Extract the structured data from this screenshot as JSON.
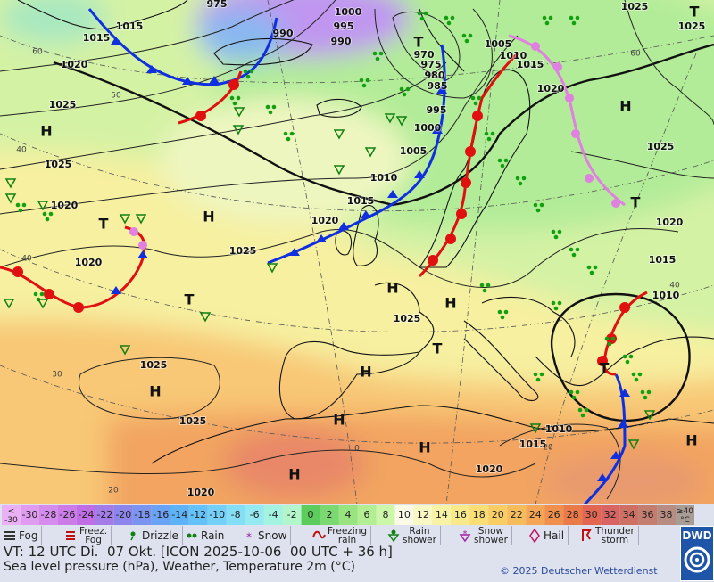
{
  "map": {
    "isobar_labels": [
      "975",
      "1000",
      "995",
      "990",
      "990",
      "1015",
      "1015",
      "1020",
      "1025",
      "1025",
      "1025",
      "970",
      "975",
      "980",
      "985",
      "1005",
      "1010",
      "1015",
      "1020",
      "995",
      "1000",
      "1005",
      "1010",
      "1015",
      "1020",
      "1025",
      "1020",
      "1025",
      "1020",
      "1025",
      "1020",
      "1015",
      "1010",
      "1025",
      "1025",
      "1025",
      "1010",
      "1015",
      "1020",
      "1020"
    ],
    "graticule_labels": [
      "60",
      "50",
      "40",
      "40",
      "30",
      "20",
      "60",
      "40",
      "20",
      "0"
    ],
    "pressure_centers": [
      "H",
      "H",
      "H",
      "H",
      "H",
      "H",
      "H",
      "H",
      "H",
      "H",
      "H",
      "T",
      "T",
      "T",
      "T",
      "T",
      "T",
      "T"
    ]
  },
  "color_scale": [
    {
      "label": "<\n-30",
      "color": "#eab0f4"
    },
    {
      "label": "-30",
      "color": "#e09cf0"
    },
    {
      "label": "-28",
      "color": "#d68cec"
    },
    {
      "label": "-26",
      "color": "#cc7ce8"
    },
    {
      "label": "-24",
      "color": "#c06ee6"
    },
    {
      "label": "-22",
      "color": "#a47ce8"
    },
    {
      "label": "-20",
      "color": "#8c86ec"
    },
    {
      "label": "-18",
      "color": "#7a94f0"
    },
    {
      "label": "-16",
      "color": "#6aa2f4"
    },
    {
      "label": "-14",
      "color": "#5eb2f6"
    },
    {
      "label": "-12",
      "color": "#64c2f8"
    },
    {
      "label": "-10",
      "color": "#74d0f8"
    },
    {
      "label": "-8",
      "color": "#84def6"
    },
    {
      "label": "-6",
      "color": "#94eaf0"
    },
    {
      "label": "-4",
      "color": "#a4f2e0"
    },
    {
      "label": "-2",
      "color": "#b4f6cc"
    },
    {
      "label": "0",
      "color": "#5ccc5c"
    },
    {
      "label": "2",
      "color": "#7cd870"
    },
    {
      "label": "4",
      "color": "#98e480"
    },
    {
      "label": "6",
      "color": "#b4ee94"
    },
    {
      "label": "8",
      "color": "#ccf6a8"
    },
    {
      "label": "10",
      "color": "#fafae6"
    },
    {
      "label": "12",
      "color": "#f8f8c4"
    },
    {
      "label": "14",
      "color": "#f8f2a4"
    },
    {
      "label": "16",
      "color": "#f8ea88"
    },
    {
      "label": "18",
      "color": "#f8de74"
    },
    {
      "label": "20",
      "color": "#f8ce64"
    },
    {
      "label": "22",
      "color": "#f6bc5c"
    },
    {
      "label": "24",
      "color": "#f4a654"
    },
    {
      "label": "26",
      "color": "#f0904c"
    },
    {
      "label": "28",
      "color": "#ea7a48"
    },
    {
      "label": "30",
      "color": "#e26650"
    },
    {
      "label": "32",
      "color": "#d86464"
    },
    {
      "label": "34",
      "color": "#ce7064"
    },
    {
      "label": "36",
      "color": "#c47e70"
    },
    {
      "label": "38",
      "color": "#b88c80"
    },
    {
      "label": "≥40\n°C",
      "color": "#a89c94"
    }
  ],
  "weather_legend": [
    "Fog",
    "Freez.\nFog",
    "Drizzle",
    "Rain",
    "Snow",
    "Freezing\nrain",
    "Rain\nshower",
    "Snow\nshower",
    "Hail",
    "Thunder\nstorm"
  ],
  "footer": {
    "valid_time": "VT: 12 UTC Di.  07 Okt. [ICON 2025-10-06  00 UTC + 36 h]",
    "subtitle": "Sea level pressure (hPa), Weather, Temperature 2m (°C)",
    "copyright": "© 2025 Deutscher Wetterdienst",
    "logo": "DWD"
  }
}
